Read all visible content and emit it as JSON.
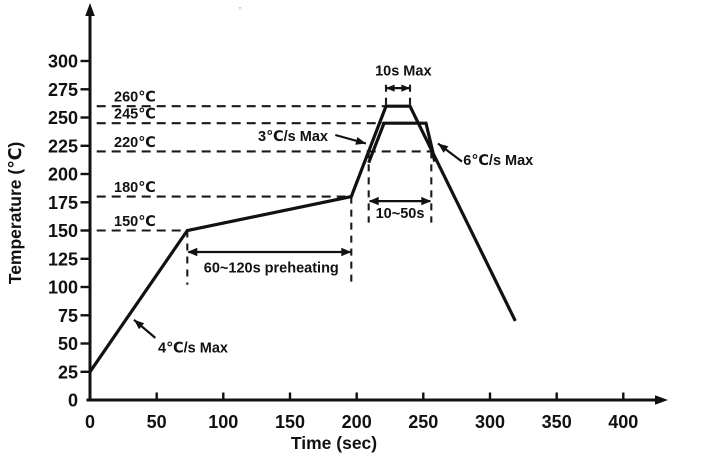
{
  "chart_data": {
    "type": "line",
    "title": "",
    "xlabel": "Time (sec)",
    "ylabel": "Temperature (℃)",
    "xlim": [
      0,
      430
    ],
    "ylim": [
      0,
      345
    ],
    "grid": false,
    "legend": false,
    "x_ticks": [
      0,
      50,
      100,
      150,
      200,
      250,
      300,
      350,
      400
    ],
    "y_ticks": [
      0,
      25,
      50,
      75,
      100,
      125,
      150,
      175,
      200,
      225,
      250,
      275,
      300
    ],
    "series": [
      {
        "name": "profile-max-260",
        "points": [
          [
            0,
            25
          ],
          [
            73,
            150
          ],
          [
            196,
            180
          ],
          [
            222,
            260
          ],
          [
            240,
            260
          ],
          [
            319,
            70
          ]
        ]
      },
      {
        "name": "profile-nominal-245",
        "points": [
          [
            209,
            210
          ],
          [
            220.5,
            245
          ],
          [
            252,
            245
          ],
          [
            257,
            220
          ],
          [
            258.5,
            211
          ]
        ]
      }
    ],
    "ref_lines_h": [
      {
        "label": "260℃",
        "temp": 260,
        "t_from": 5,
        "t_to": 222
      },
      {
        "label": "245℃",
        "temp": 245,
        "t_from": 5,
        "t_to": 220.5
      },
      {
        "label": "220℃",
        "temp": 220,
        "t_from": 5,
        "t_to": 256
      },
      {
        "label": "180℃",
        "temp": 180,
        "t_from": 5,
        "t_to": 196
      },
      {
        "label": "150℃",
        "temp": 150,
        "t_from": 5,
        "t_to": 73
      }
    ],
    "ref_lines_v": [
      {
        "name": "preheat-start-marker",
        "t": 73,
        "temp_from": 150,
        "temp_to": 102
      },
      {
        "name": "preheat-end-marker",
        "t": 196,
        "temp_from": 180,
        "temp_to": 102
      },
      {
        "name": "above-220-start-marker",
        "t": 209,
        "temp_from": 220,
        "temp_to": 157
      },
      {
        "name": "above-220-end-marker",
        "t": 256,
        "temp_from": 220,
        "temp_to": 157
      },
      {
        "name": "peak-start-marker",
        "t": 222,
        "temp_from": 279,
        "temp_to": 260
      },
      {
        "name": "peak-end-marker",
        "t": 240,
        "temp_from": 279,
        "temp_to": 260
      }
    ],
    "range_arrows": [
      {
        "name": "peak-duration",
        "label": "10s Max",
        "t1": 222,
        "t2": 240,
        "temp": 276,
        "label_t": 235,
        "label_temp": 287
      },
      {
        "name": "time-above-220",
        "label": "10~50s",
        "t1": 209,
        "t2": 256,
        "temp": 176,
        "label_t": 232.5,
        "label_temp": 161
      },
      {
        "name": "preheat-duration",
        "label": "60~120s preheating",
        "t1": 73,
        "t2": 196,
        "temp": 131,
        "label_t": 136,
        "label_temp": 113
      }
    ],
    "leader_annotations": [
      {
        "name": "ramp-up-rate",
        "label": "4℃/s Max",
        "text_t": 51,
        "text_temp": 42,
        "tail_t": 49,
        "tail_temp": 55,
        "head_t": 33,
        "head_temp": 71
      },
      {
        "name": "reflow-ramp-rate",
        "label": "3℃/s Max",
        "text_t": 126,
        "text_temp": 229,
        "tail_t": 184,
        "tail_temp": 234.5,
        "head_t": 207,
        "head_temp": 227
      },
      {
        "name": "cooling-rate",
        "label": "6℃/s Max",
        "text_t": 280,
        "text_temp": 208,
        "tail_t": 279,
        "tail_temp": 211,
        "head_t": 261,
        "head_temp": 227
      }
    ]
  },
  "artifacts": {
    "stray_mark": "„"
  }
}
